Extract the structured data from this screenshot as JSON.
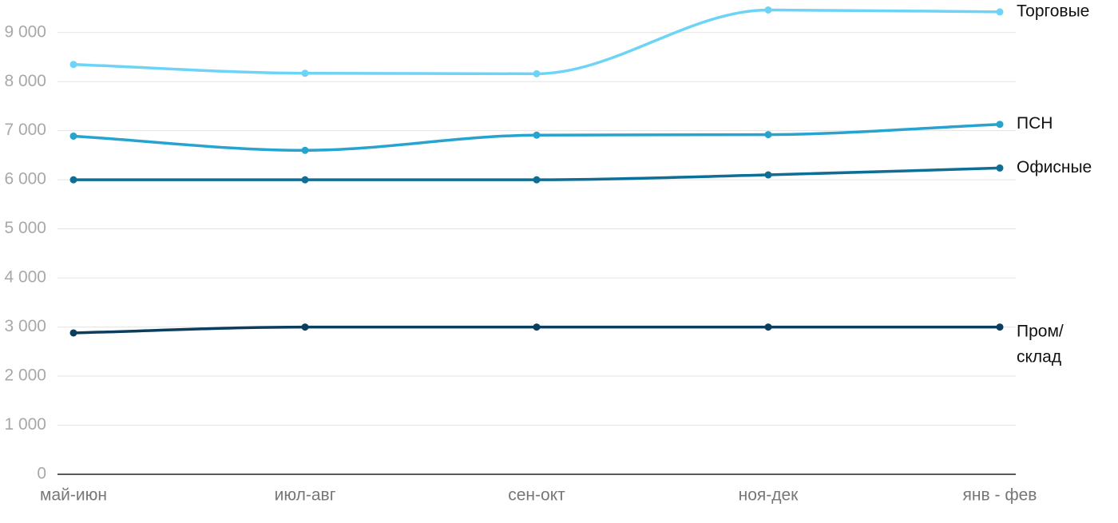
{
  "chart_data": {
    "type": "line",
    "categories": [
      "май-июн",
      "июл-авг",
      "сен-окт",
      "ноя-дек",
      "янв - фев"
    ],
    "series": [
      {
        "name": "Торговые",
        "color": "#6dd3f7",
        "values": [
          8350,
          8170,
          8160,
          9460,
          9420
        ]
      },
      {
        "name": "ПСН",
        "color": "#27a3cf",
        "values": [
          6890,
          6600,
          6910,
          6920,
          7130
        ]
      },
      {
        "name": "Офисные",
        "color": "#0e6e96",
        "values": [
          6000,
          6000,
          6000,
          6100,
          6240
        ]
      },
      {
        "name": "Пром/ склад",
        "color": "#0a3d5e",
        "values": [
          2880,
          3000,
          3000,
          3000,
          3000
        ]
      }
    ],
    "ylim": [
      0,
      9500
    ],
    "yticks": [
      0,
      {
        "value": 1000,
        "label": "1 000"
      },
      {
        "value": 2000,
        "label": "2 000"
      },
      {
        "value": 3000,
        "label": "3 000"
      },
      {
        "value": 4000,
        "label": "4 000"
      },
      {
        "value": 5000,
        "label": "5 000"
      },
      {
        "value": 6000,
        "label": "6 000"
      },
      {
        "value": 7000,
        "label": "7 000"
      },
      {
        "value": 8000,
        "label": "8 000"
      },
      {
        "value": 9000,
        "label": "9 000"
      }
    ],
    "grid": true
  }
}
